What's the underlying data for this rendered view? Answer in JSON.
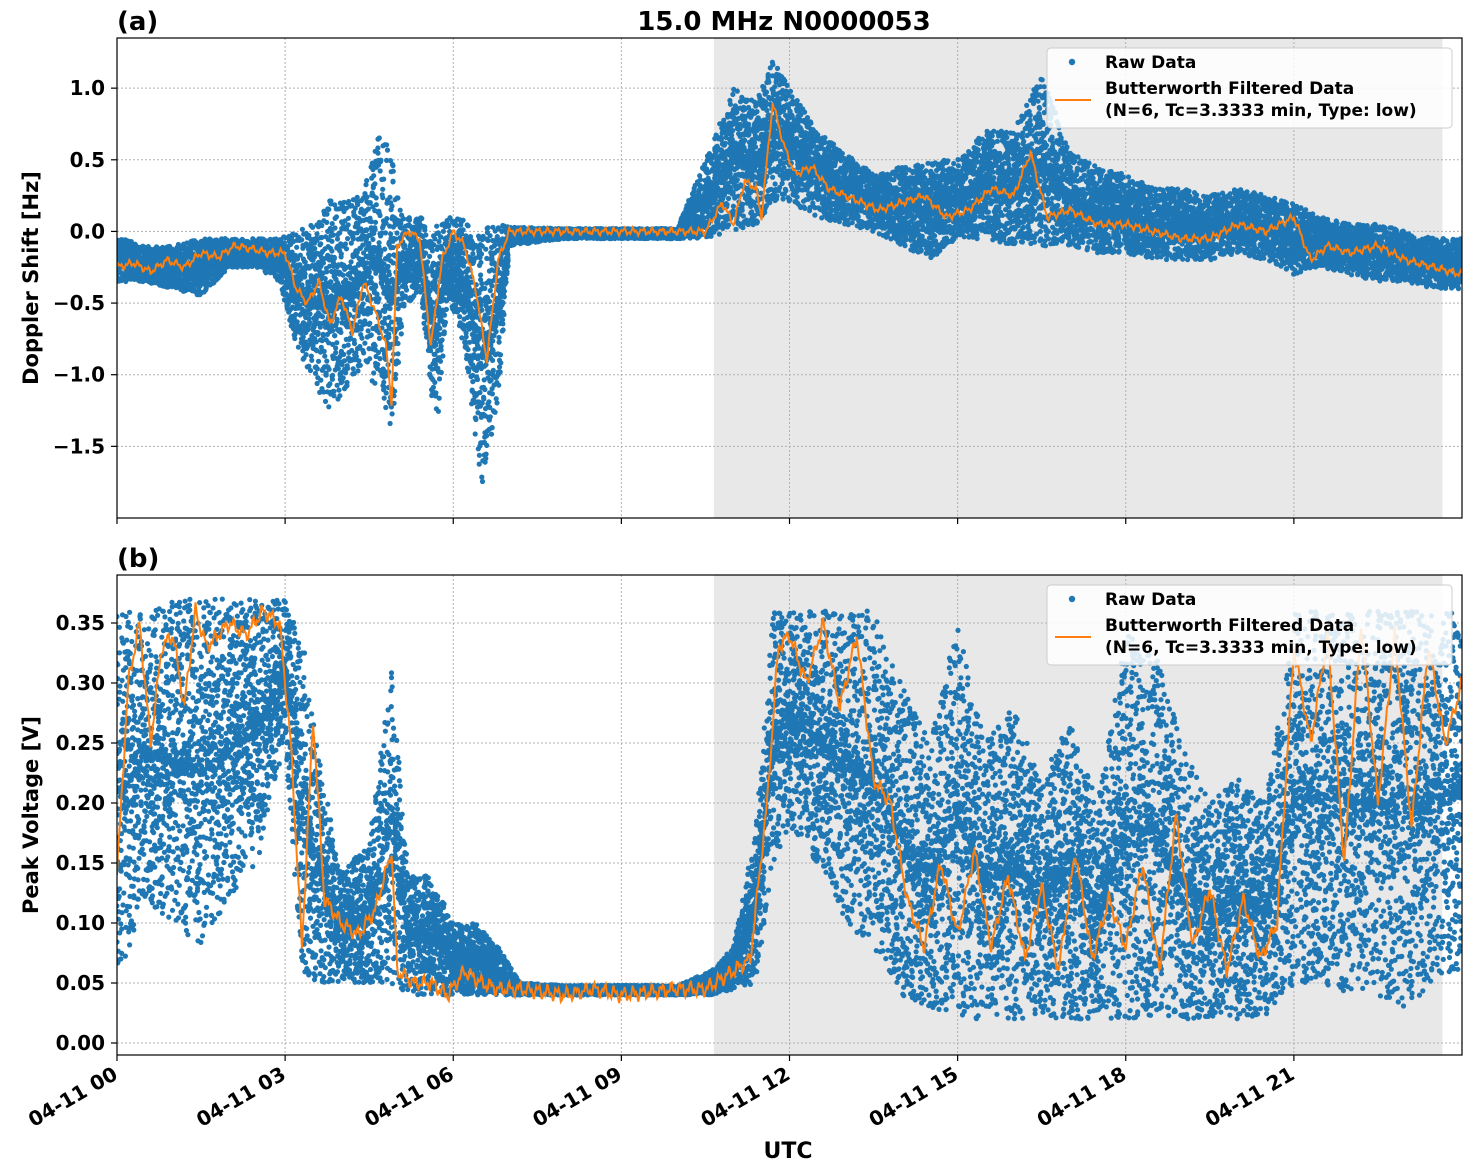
{
  "figure": {
    "title": "15.0 MHz N0000053",
    "xlabel": "UTC",
    "x_ticks": [
      "04-11 00",
      "04-11 03",
      "04-11 06",
      "04-11 09",
      "04-11 12",
      "04-11 15",
      "04-11 18",
      "04-11 21"
    ],
    "colors": {
      "raw": "#1f77b4",
      "filtered": "#ff7f0e",
      "night_shade": "#e8e8e8",
      "grid": "#b0b0b0"
    }
  },
  "chart_data": [
    {
      "type": "scatter",
      "panel_label": "(a)",
      "ylabel": "Doppler Shift [Hz]",
      "ylim": [
        -2.0,
        1.35
      ],
      "yticks": [
        -1.5,
        -1.0,
        -0.5,
        0.0,
        0.5,
        1.0
      ],
      "ytick_labels": [
        "−1.5",
        "−1.0",
        "−0.5",
        "0.0",
        "0.5",
        "1.0"
      ],
      "xlim_hours": [
        0,
        24
      ],
      "shaded_span_hours": [
        10.65,
        23.65
      ],
      "grid": true,
      "legend": {
        "placement": "top-right",
        "entries": [
          "Raw Data",
          "Butterworth Filtered Data",
          "(N=6, Tc=3.3333 min, Type: low)"
        ]
      },
      "series": [
        {
          "name": "Raw Data",
          "kind": "points",
          "x_hours": [
            0.1,
            0.5,
            1.0,
            1.5,
            2.0,
            2.5,
            2.9,
            3.2,
            3.5,
            3.8,
            4.1,
            4.4,
            4.7,
            4.9,
            5.1,
            5.4,
            5.7,
            5.9,
            6.2,
            6.5,
            6.8,
            7.0,
            8.0,
            9.0,
            10.0,
            10.6,
            11.0,
            11.4,
            11.7,
            12.0,
            12.5,
            13.0,
            13.5,
            14.0,
            14.5,
            15.0,
            15.5,
            16.0,
            16.5,
            17.0,
            17.5,
            18.0,
            18.5,
            19.0,
            19.5,
            20.0,
            20.5,
            21.0,
            21.5,
            22.0,
            22.5,
            23.0,
            23.5,
            24.0
          ],
          "y_min": [
            -0.35,
            -0.35,
            -0.4,
            -0.45,
            -0.25,
            -0.25,
            -0.35,
            -0.8,
            -1.05,
            -1.25,
            -1.1,
            -0.95,
            -1.15,
            -1.4,
            -0.6,
            -0.4,
            -1.45,
            -0.45,
            -0.8,
            -1.8,
            -1.2,
            -0.1,
            -0.05,
            -0.05,
            -0.05,
            -0.05,
            0.0,
            0.05,
            0.2,
            0.2,
            0.1,
            0.05,
            0.0,
            -0.1,
            -0.2,
            -0.05,
            -0.05,
            -0.1,
            -0.1,
            -0.1,
            -0.15,
            -0.15,
            -0.2,
            -0.2,
            -0.2,
            -0.15,
            -0.2,
            -0.3,
            -0.25,
            -0.3,
            -0.35,
            -0.35,
            -0.4,
            -0.4
          ],
          "y_max": [
            -0.05,
            -0.1,
            -0.1,
            -0.05,
            -0.05,
            -0.05,
            -0.05,
            0.0,
            0.05,
            0.25,
            0.2,
            0.3,
            0.7,
            0.55,
            0.1,
            0.1,
            0.05,
            0.1,
            0.08,
            0.05,
            0.05,
            0.03,
            0.02,
            0.02,
            0.02,
            0.6,
            1.0,
            0.9,
            1.2,
            1.0,
            0.7,
            0.55,
            0.4,
            0.45,
            0.5,
            0.5,
            0.7,
            0.7,
            1.1,
            0.55,
            0.45,
            0.4,
            0.3,
            0.3,
            0.25,
            0.3,
            0.25,
            0.2,
            0.1,
            0.05,
            0.05,
            0.0,
            -0.05,
            -0.05
          ]
        },
        {
          "name": "Butterworth Filtered Data",
          "kind": "line",
          "x_hours": [
            0.0,
            0.3,
            0.6,
            0.9,
            1.2,
            1.5,
            1.8,
            2.1,
            2.4,
            2.7,
            3.0,
            3.2,
            3.4,
            3.6,
            3.8,
            4.0,
            4.2,
            4.4,
            4.6,
            4.8,
            4.9,
            5.0,
            5.2,
            5.4,
            5.6,
            5.8,
            6.0,
            6.2,
            6.4,
            6.6,
            6.8,
            7.0,
            8.0,
            9.0,
            10.0,
            10.5,
            10.8,
            11.0,
            11.2,
            11.4,
            11.5,
            11.7,
            11.9,
            12.1,
            12.4,
            12.7,
            13.0,
            13.3,
            13.6,
            14.0,
            14.4,
            14.8,
            15.2,
            15.6,
            16.0,
            16.3,
            16.6,
            17.0,
            17.5,
            18.0,
            18.5,
            19.0,
            19.5,
            20.0,
            20.5,
            21.0,
            21.3,
            21.6,
            22.0,
            22.5,
            23.0,
            23.5,
            24.0
          ],
          "y": [
            -0.25,
            -0.22,
            -0.28,
            -0.2,
            -0.25,
            -0.15,
            -0.18,
            -0.1,
            -0.12,
            -0.15,
            -0.15,
            -0.4,
            -0.5,
            -0.35,
            -0.65,
            -0.45,
            -0.7,
            -0.35,
            -0.55,
            -0.8,
            -1.2,
            -0.1,
            0.0,
            -0.05,
            -0.8,
            -0.2,
            0.0,
            -0.1,
            -0.4,
            -0.9,
            -0.2,
            0.0,
            0.0,
            0.0,
            0.0,
            0.0,
            0.2,
            0.05,
            0.35,
            0.3,
            0.1,
            0.9,
            0.6,
            0.4,
            0.45,
            0.3,
            0.25,
            0.2,
            0.15,
            0.2,
            0.25,
            0.1,
            0.15,
            0.3,
            0.25,
            0.55,
            0.1,
            0.15,
            0.05,
            0.05,
            0.0,
            -0.05,
            -0.05,
            0.05,
            0.0,
            0.1,
            -0.2,
            -0.1,
            -0.15,
            -0.1,
            -0.2,
            -0.25,
            -0.3
          ]
        }
      ]
    },
    {
      "type": "scatter",
      "panel_label": "(b)",
      "ylabel": "Peak Voltage [V]",
      "ylim": [
        -0.01,
        0.39
      ],
      "yticks": [
        0.0,
        0.05,
        0.1,
        0.15,
        0.2,
        0.25,
        0.3,
        0.35
      ],
      "ytick_labels": [
        "0.00",
        "0.05",
        "0.10",
        "0.15",
        "0.20",
        "0.25",
        "0.30",
        "0.35"
      ],
      "xlim_hours": [
        0,
        24
      ],
      "shaded_span_hours": [
        10.65,
        23.65
      ],
      "grid": true,
      "legend": {
        "placement": "top-right",
        "entries": [
          "Raw Data",
          "Butterworth Filtered Data",
          "(N=6, Tc=3.3333 min, Type: low)"
        ]
      },
      "series": [
        {
          "name": "Raw Data",
          "kind": "points",
          "x_hours": [
            0.1,
            0.5,
            1.0,
            1.5,
            2.0,
            2.5,
            3.0,
            3.3,
            3.6,
            4.0,
            4.5,
            4.9,
            5.2,
            5.6,
            6.0,
            6.4,
            6.8,
            7.2,
            8.0,
            9.0,
            10.0,
            10.6,
            11.0,
            11.4,
            11.7,
            12.0,
            12.5,
            13.0,
            13.5,
            14.0,
            14.5,
            15.0,
            15.5,
            16.0,
            16.5,
            17.0,
            17.5,
            18.0,
            18.5,
            19.0,
            19.5,
            20.0,
            20.5,
            21.0,
            21.5,
            22.0,
            22.5,
            23.0,
            23.5,
            24.0
          ],
          "y_min": [
            0.06,
            0.12,
            0.1,
            0.08,
            0.12,
            0.15,
            0.25,
            0.06,
            0.05,
            0.05,
            0.05,
            0.05,
            0.04,
            0.04,
            0.04,
            0.04,
            0.04,
            0.04,
            0.04,
            0.04,
            0.04,
            0.04,
            0.045,
            0.05,
            0.15,
            0.18,
            0.15,
            0.1,
            0.08,
            0.04,
            0.03,
            0.02,
            0.02,
            0.02,
            0.02,
            0.02,
            0.02,
            0.02,
            0.02,
            0.02,
            0.02,
            0.02,
            0.02,
            0.05,
            0.05,
            0.04,
            0.04,
            0.03,
            0.05,
            0.06
          ],
          "y_max": [
            0.36,
            0.36,
            0.37,
            0.37,
            0.37,
            0.37,
            0.37,
            0.34,
            0.24,
            0.14,
            0.17,
            0.31,
            0.14,
            0.14,
            0.1,
            0.1,
            0.08,
            0.05,
            0.048,
            0.048,
            0.048,
            0.06,
            0.08,
            0.18,
            0.36,
            0.36,
            0.36,
            0.36,
            0.36,
            0.3,
            0.25,
            0.35,
            0.25,
            0.28,
            0.22,
            0.27,
            0.2,
            0.34,
            0.33,
            0.25,
            0.2,
            0.22,
            0.2,
            0.36,
            0.36,
            0.36,
            0.36,
            0.36,
            0.36,
            0.36
          ]
        },
        {
          "name": "Butterworth Filtered Data",
          "kind": "line",
          "x_hours": [
            0.0,
            0.2,
            0.4,
            0.6,
            0.8,
            1.0,
            1.2,
            1.4,
            1.6,
            1.8,
            2.0,
            2.3,
            2.6,
            2.9,
            3.1,
            3.3,
            3.5,
            3.7,
            4.0,
            4.3,
            4.6,
            4.9,
            5.0,
            5.3,
            5.6,
            5.9,
            6.2,
            6.5,
            6.8,
            7.2,
            8.0,
            8.5,
            9.0,
            10.0,
            10.5,
            11.0,
            11.3,
            11.6,
            11.8,
            12.0,
            12.3,
            12.6,
            12.9,
            13.2,
            13.5,
            13.8,
            14.1,
            14.4,
            14.7,
            15.0,
            15.3,
            15.6,
            15.9,
            16.2,
            16.5,
            16.8,
            17.1,
            17.4,
            17.7,
            18.0,
            18.3,
            18.6,
            18.9,
            19.2,
            19.5,
            19.8,
            20.1,
            20.4,
            20.7,
            21.0,
            21.3,
            21.6,
            21.9,
            22.2,
            22.5,
            22.8,
            23.1,
            23.4,
            23.7,
            24.0
          ],
          "y": [
            0.14,
            0.3,
            0.35,
            0.25,
            0.33,
            0.34,
            0.28,
            0.36,
            0.33,
            0.34,
            0.35,
            0.34,
            0.36,
            0.35,
            0.25,
            0.08,
            0.27,
            0.12,
            0.1,
            0.09,
            0.11,
            0.16,
            0.06,
            0.05,
            0.05,
            0.04,
            0.06,
            0.05,
            0.045,
            0.045,
            0.04,
            0.045,
            0.04,
            0.045,
            0.045,
            0.06,
            0.07,
            0.2,
            0.33,
            0.34,
            0.3,
            0.35,
            0.28,
            0.34,
            0.22,
            0.2,
            0.12,
            0.08,
            0.15,
            0.09,
            0.16,
            0.08,
            0.14,
            0.07,
            0.13,
            0.06,
            0.16,
            0.07,
            0.12,
            0.08,
            0.15,
            0.06,
            0.19,
            0.08,
            0.13,
            0.06,
            0.12,
            0.07,
            0.1,
            0.33,
            0.25,
            0.34,
            0.15,
            0.35,
            0.2,
            0.34,
            0.18,
            0.33,
            0.25,
            0.3
          ]
        }
      ]
    }
  ]
}
